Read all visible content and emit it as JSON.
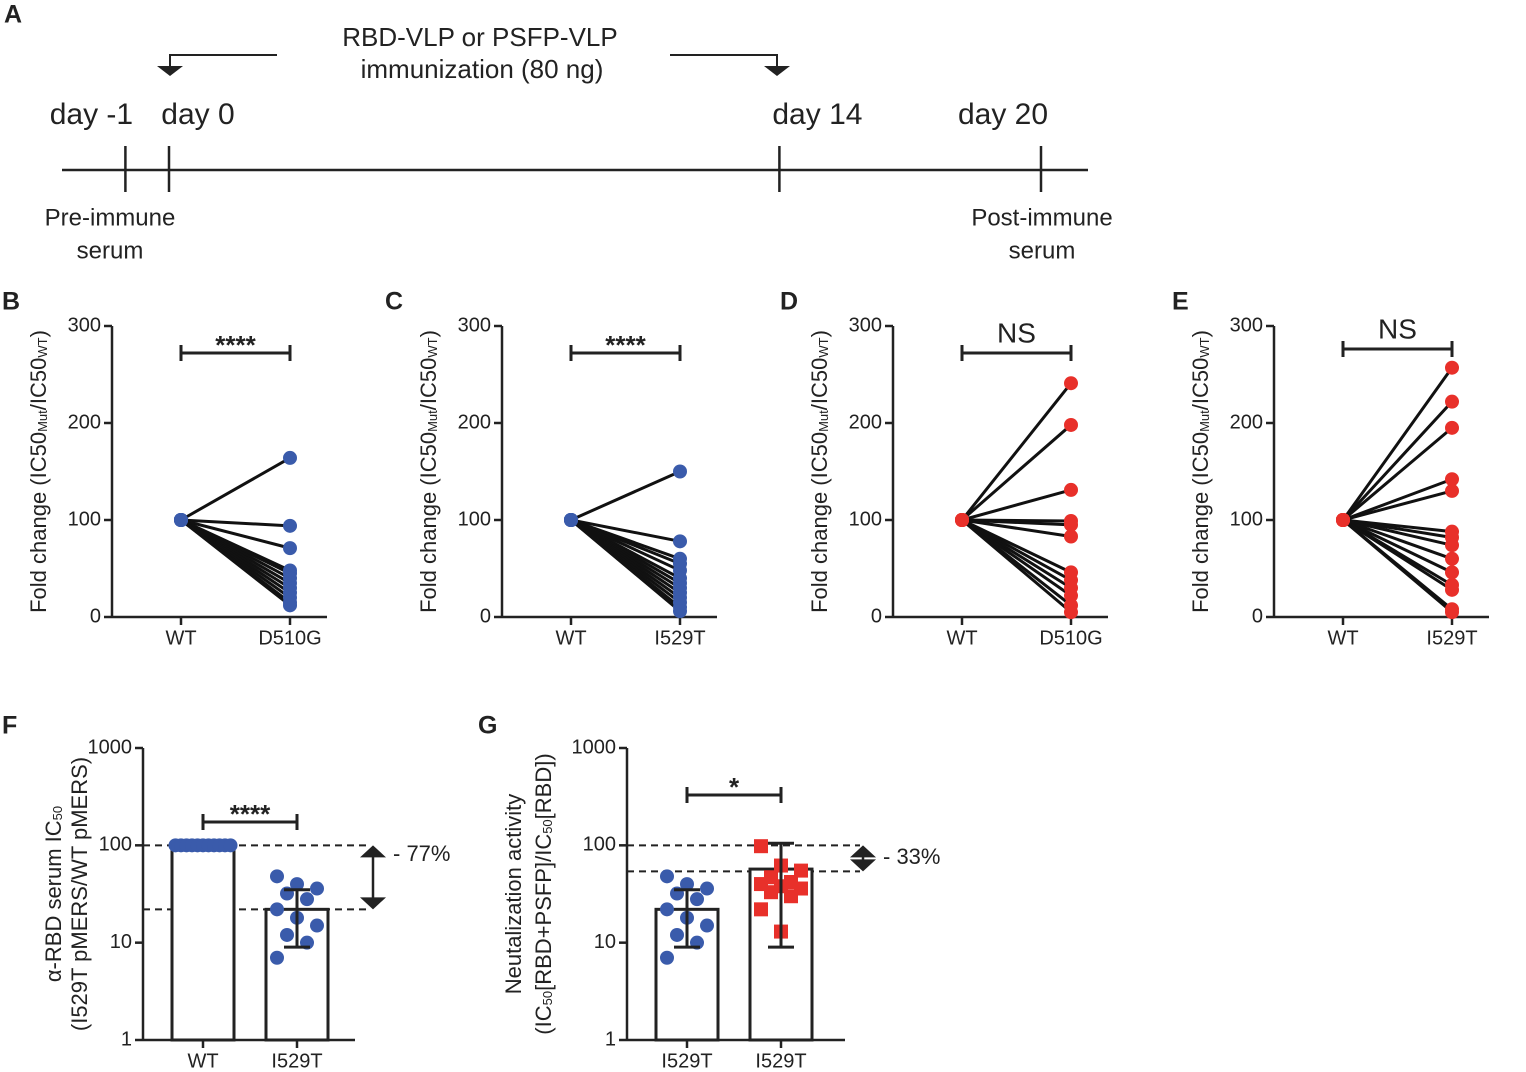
{
  "timeline": {
    "panel": "A",
    "treatment": [
      "RBD-VLP or PSFP-VLP",
      "immunization (80 ng)"
    ],
    "ticks": [
      {
        "value": -1,
        "label": "day -1"
      },
      {
        "value": 0,
        "label": "day 0"
      },
      {
        "value": 14,
        "label": "day 14"
      },
      {
        "value": 20,
        "label": "day 20"
      }
    ],
    "pre": [
      "Pre-immune",
      "serum"
    ],
    "post": [
      "Post-immune",
      "serum"
    ]
  },
  "chart_data": [
    {
      "type": "paired",
      "panel": "B",
      "ylabel": [
        [
          "Fold change (IC50",
          "Mut",
          "/IC50",
          "WT",
          ")"
        ]
      ],
      "categories": [
        "WT",
        "D510G"
      ],
      "color": "#3a5bab",
      "significance": "****",
      "values": [
        [
          100,
          100,
          100,
          100,
          100,
          100,
          100,
          100,
          100,
          100,
          100,
          100
        ],
        [
          164,
          94,
          71,
          48,
          45,
          40,
          35,
          30,
          25,
          20,
          15,
          12
        ]
      ],
      "ylim": [
        0,
        300
      ],
      "yticks": [
        0,
        100,
        200,
        300
      ]
    },
    {
      "type": "paired",
      "panel": "C",
      "ylabel": [
        [
          "Fold change (IC50",
          "Mut",
          "/IC50",
          "WT",
          ")"
        ]
      ],
      "categories": [
        "WT",
        "I529T"
      ],
      "color": "#3a5bab",
      "significance": "****",
      "values": [
        [
          100,
          100,
          100,
          100,
          100,
          100,
          100,
          100,
          100,
          100,
          100,
          100,
          100
        ],
        [
          150,
          78,
          60,
          55,
          48,
          40,
          35,
          30,
          25,
          20,
          15,
          10,
          6
        ]
      ],
      "ylim": [
        0,
        300
      ],
      "yticks": [
        0,
        100,
        200,
        300
      ]
    },
    {
      "type": "paired",
      "panel": "D",
      "ylabel": [
        [
          "Fold change (IC50",
          "Mut",
          "/IC50",
          "WT",
          ")"
        ]
      ],
      "categories": [
        "WT",
        "D510G"
      ],
      "color": "#e8302a",
      "significance": "NS",
      "values": [
        [
          100,
          100,
          100,
          100,
          100,
          100,
          100,
          100,
          100,
          100,
          100,
          100
        ],
        [
          241,
          198,
          131,
          99,
          95,
          83,
          46,
          38,
          30,
          22,
          12,
          5
        ]
      ],
      "ylim": [
        0,
        300
      ],
      "yticks": [
        0,
        100,
        200,
        300
      ]
    },
    {
      "type": "paired",
      "panel": "E",
      "ylabel": [
        [
          "Fold change (IC50",
          "Mut",
          "/IC50",
          "WT",
          ")"
        ]
      ],
      "categories": [
        "WT",
        "I529T"
      ],
      "color": "#e8302a",
      "significance": "NS",
      "values": [
        [
          100,
          100,
          100,
          100,
          100,
          100,
          100,
          100,
          100,
          100,
          100,
          100,
          100,
          100
        ],
        [
          257,
          222,
          195,
          142,
          130,
          88,
          82,
          74,
          60,
          46,
          33,
          28,
          8,
          5
        ]
      ],
      "ylim": [
        0,
        300
      ],
      "yticks": [
        0,
        100,
        200,
        300
      ]
    },
    {
      "type": "bar_points",
      "panel": "F",
      "ylabel": [
        [
          "α-RBD serum IC",
          "50"
        ],
        [
          "(I529T pMERS/WT pMERS)"
        ]
      ],
      "categories": [
        "WT",
        "I529T"
      ],
      "values": [
        100,
        22
      ],
      "errors": [
        null,
        13
      ],
      "points": [
        [
          100,
          100,
          100,
          100,
          100,
          100,
          100,
          100,
          100,
          100,
          100
        ],
        [
          48,
          40,
          36,
          32,
          28,
          22,
          18,
          15,
          12,
          10,
          7
        ]
      ],
      "colors": [
        "#3a5bab",
        "#3a5bab"
      ],
      "markers": [
        "circle",
        "circle"
      ],
      "significance": "****",
      "hlines": [
        100,
        22
      ],
      "annotation": "- 77%",
      "log_scale": true,
      "ylim": [
        1,
        1000
      ],
      "yticks": [
        1,
        10,
        100,
        1000
      ]
    },
    {
      "type": "bar_points",
      "panel": "G",
      "ylabel": [
        [
          "Neutalization activity"
        ],
        [
          "(IC",
          "50",
          "[RBD+PSFP]/IC",
          "50",
          "[RBD])"
        ]
      ],
      "categories": [
        "I529T",
        "I529T"
      ],
      "values": [
        22,
        57
      ],
      "errors": [
        13,
        48
      ],
      "points": [
        [
          48,
          40,
          36,
          32,
          28,
          22,
          18,
          15,
          12,
          10,
          7
        ],
        [
          98,
          62,
          55,
          47,
          42,
          40,
          38,
          36,
          33,
          30,
          22,
          13
        ]
      ],
      "colors": [
        "#3a5bab",
        "#e8302a"
      ],
      "markers": [
        "circle",
        "square"
      ],
      "significance": "*",
      "hlines": [
        100,
        54
      ],
      "annotation": "- 33%",
      "log_scale": true,
      "ylim": [
        1,
        1000
      ],
      "yticks": [
        1,
        10,
        100,
        1000
      ]
    }
  ]
}
